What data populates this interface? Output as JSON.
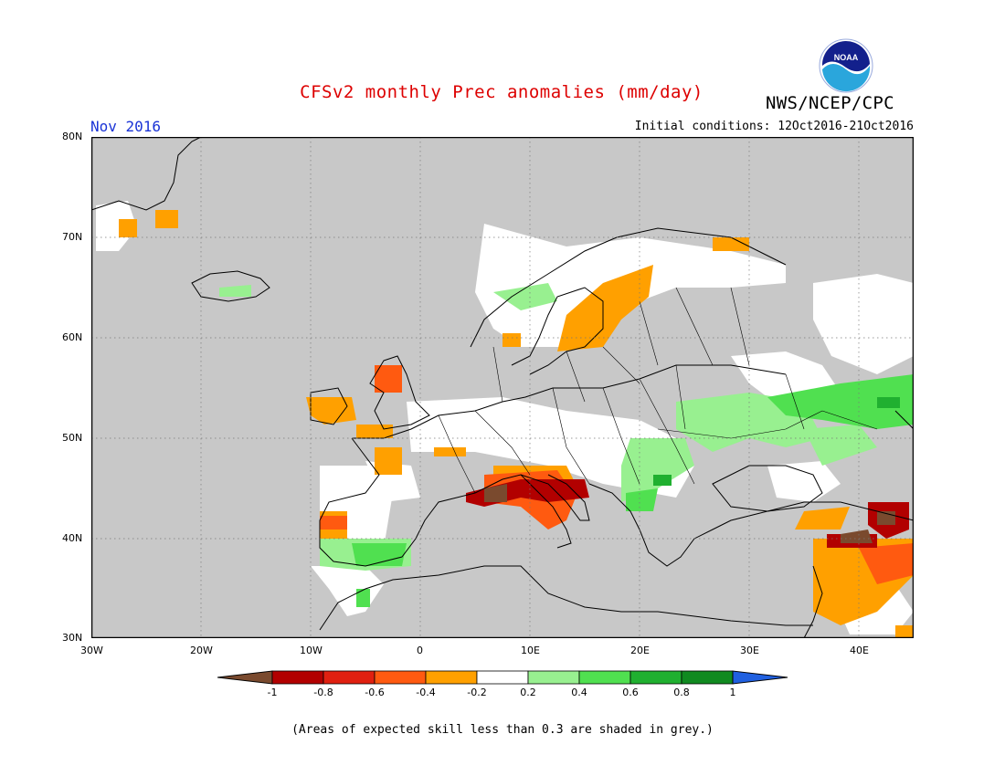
{
  "header": {
    "title": "CFSv2 monthly Prec anomalies (mm/day)",
    "agency": "NWS/NCEP/CPC",
    "logo_text": "NOAA",
    "month": "Nov 2016",
    "initial_conditions": "Initial conditions: 12Oct2016-21Oct2016"
  },
  "map": {
    "region": "Europe",
    "lon_range": [
      -30,
      45
    ],
    "lat_range": [
      30,
      80
    ],
    "y_ticks": [
      "80N",
      "70N",
      "60N",
      "50N",
      "40N",
      "30N"
    ],
    "x_ticks": [
      "30W",
      "20W",
      "10W",
      "0",
      "10E",
      "20E",
      "30E",
      "40E"
    ],
    "background_color": "#c8c8c8"
  },
  "colorbar": {
    "labels": [
      "-1",
      "-0.8",
      "-0.6",
      "-0.4",
      "-0.2",
      "0.2",
      "0.4",
      "0.6",
      "0.8",
      "1"
    ],
    "colors": [
      "#7a4a2e",
      "#b20000",
      "#e02010",
      "#ff5a10",
      "#ffa000",
      "#ffffff",
      "#98f090",
      "#50e050",
      "#20b030",
      "#108a20",
      "#2060e0"
    ]
  },
  "footer": {
    "note": "(Areas of expected skill less than 0.3 are shaded in grey.)"
  }
}
